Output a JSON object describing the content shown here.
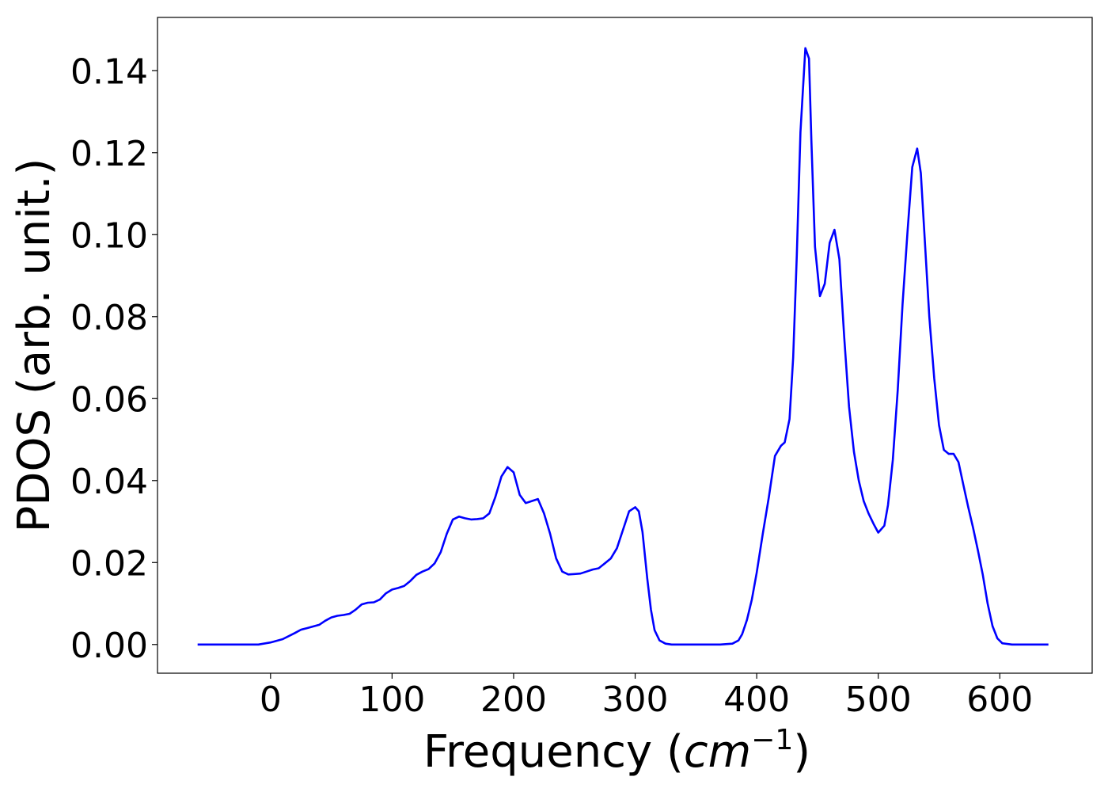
{
  "chart_data": {
    "type": "line",
    "title": "",
    "xlabel": "Frequency (",
    "xlabel_math_base": "cm",
    "xlabel_math_sup": "−1",
    "xlabel_suffix": ")",
    "ylabel": "PDOS (arb. unit.)",
    "xlim": [
      -93,
      676
    ],
    "ylim": [
      -0.007,
      0.153
    ],
    "xticks": [
      0,
      100,
      200,
      300,
      400,
      500,
      600
    ],
    "xtick_labels": [
      "0",
      "100",
      "200",
      "300",
      "400",
      "500",
      "600"
    ],
    "yticks": [
      0.0,
      0.02,
      0.04,
      0.06,
      0.08,
      0.1,
      0.12,
      0.14
    ],
    "ytick_labels": [
      "0.00",
      "0.02",
      "0.04",
      "0.06",
      "0.08",
      "0.10",
      "0.12",
      "0.14"
    ],
    "grid": false,
    "series": [
      {
        "color": "#0000ff",
        "x": [
          -60,
          -40,
          -20,
          -10,
          0,
          10,
          20,
          25,
          30,
          40,
          45,
          50,
          55,
          60,
          65,
          70,
          75,
          80,
          85,
          90,
          95,
          100,
          105,
          110,
          115,
          120,
          125,
          130,
          135,
          140,
          145,
          150,
          155,
          160,
          165,
          170,
          175,
          180,
          185,
          190,
          195,
          200,
          205,
          210,
          215,
          220,
          225,
          230,
          235,
          240,
          245,
          250,
          255,
          260,
          265,
          270,
          275,
          280,
          285,
          290,
          295,
          300,
          303,
          306,
          310,
          313,
          316,
          320,
          325,
          330,
          340,
          350,
          360,
          370,
          380,
          385,
          388,
          392,
          396,
          400,
          405,
          410,
          415,
          420,
          423,
          427,
          430,
          433,
          436,
          440,
          443,
          445,
          448,
          452,
          456,
          460,
          464,
          468,
          472,
          476,
          480,
          484,
          488,
          492,
          496,
          500,
          505,
          508,
          512,
          516,
          520,
          524,
          528,
          532,
          535,
          538,
          542,
          546,
          550,
          554,
          558,
          562,
          566,
          570,
          574,
          578,
          582,
          586,
          590,
          594,
          598,
          602,
          610,
          620,
          640
        ],
        "y": [
          0,
          0,
          0,
          0,
          0.0005,
          0.0013,
          0.0028,
          0.0036,
          0.004,
          0.0048,
          0.0058,
          0.0066,
          0.007,
          0.0072,
          0.0075,
          0.0085,
          0.0098,
          0.0102,
          0.0103,
          0.011,
          0.0125,
          0.0134,
          0.0138,
          0.0143,
          0.0155,
          0.017,
          0.0178,
          0.0184,
          0.0198,
          0.0225,
          0.027,
          0.0305,
          0.0312,
          0.0308,
          0.0305,
          0.0306,
          0.0308,
          0.032,
          0.036,
          0.041,
          0.0433,
          0.042,
          0.0365,
          0.0345,
          0.035,
          0.0355,
          0.032,
          0.027,
          0.021,
          0.0178,
          0.0171,
          0.0172,
          0.0173,
          0.0178,
          0.0183,
          0.0186,
          0.0198,
          0.021,
          0.0235,
          0.028,
          0.0325,
          0.0335,
          0.0325,
          0.0275,
          0.016,
          0.0085,
          0.0035,
          0.001,
          0.0002,
          0,
          0,
          0,
          0,
          0,
          0.0002,
          0.001,
          0.0025,
          0.006,
          0.011,
          0.0175,
          0.027,
          0.036,
          0.046,
          0.0485,
          0.0493,
          0.055,
          0.07,
          0.095,
          0.125,
          0.1455,
          0.143,
          0.123,
          0.097,
          0.085,
          0.088,
          0.098,
          0.1012,
          0.094,
          0.075,
          0.058,
          0.047,
          0.04,
          0.035,
          0.032,
          0.0295,
          0.0273,
          0.029,
          0.034,
          0.045,
          0.062,
          0.083,
          0.1005,
          0.1165,
          0.121,
          0.115,
          0.1,
          0.08,
          0.065,
          0.0535,
          0.0475,
          0.0465,
          0.0465,
          0.0445,
          0.039,
          0.0335,
          0.0285,
          0.023,
          0.017,
          0.01,
          0.0045,
          0.0015,
          0.0003,
          0,
          0,
          0
        ]
      }
    ]
  }
}
